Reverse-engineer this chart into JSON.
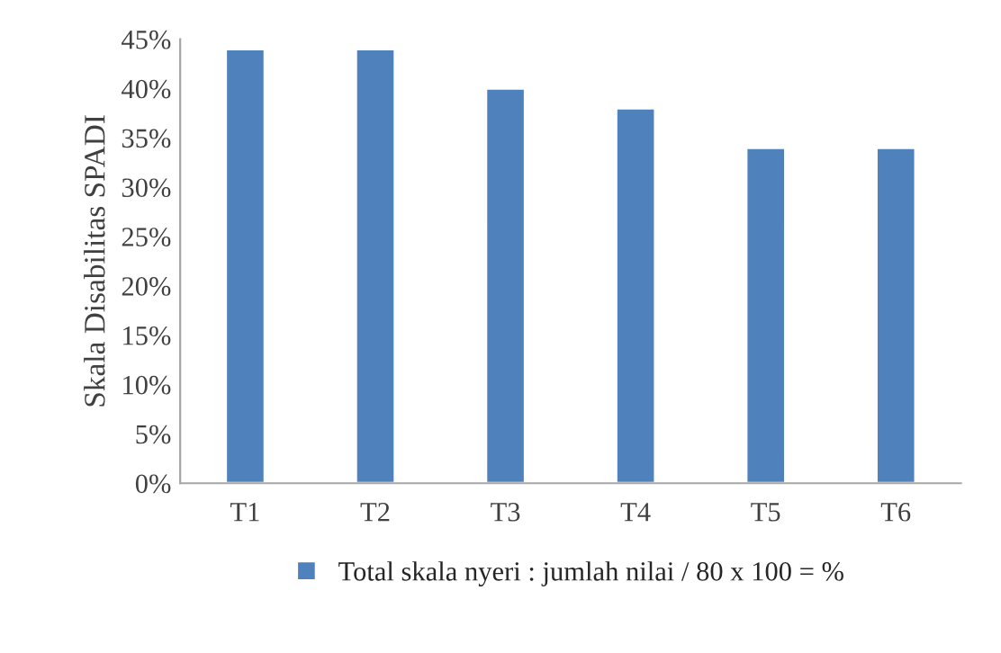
{
  "chart_data": {
    "type": "bar",
    "ylabel": "Skala Disabilitas SPADI",
    "categories": [
      "T1",
      "T2",
      "T3",
      "T4",
      "T5",
      "T6"
    ],
    "series": [
      {
        "name": "Total skala nyeri : jumlah nilai / 80 x 100 = %",
        "color": "#4f81bd",
        "values": [
          44,
          44,
          40,
          38,
          34,
          34
        ]
      }
    ],
    "ylim": [
      0,
      45
    ],
    "yticks": [
      {
        "value": 0,
        "label": "0%"
      },
      {
        "value": 5,
        "label": "5%"
      },
      {
        "value": 10,
        "label": "10%"
      },
      {
        "value": 15,
        "label": "15%"
      },
      {
        "value": 20,
        "label": "20%"
      },
      {
        "value": 25,
        "label": "25%"
      },
      {
        "value": 30,
        "label": "30%"
      },
      {
        "value": 35,
        "label": "35%"
      },
      {
        "value": 40,
        "label": "40%"
      },
      {
        "value": 45,
        "label": "45%"
      }
    ],
    "grid": false,
    "legend": "bottom"
  }
}
